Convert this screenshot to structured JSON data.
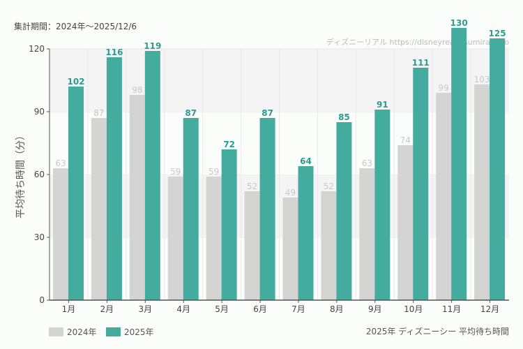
{
  "period_label": "集計期間：2024年～2025/12/6",
  "watermark": "ディズニーリアル https://disneyreal.asumirai.info",
  "subtitle": "2025年 ディズニーシー 平均待ち時間",
  "chart_data": {
    "type": "bar",
    "ylabel": "平均待ち時間（分）",
    "xlabel": "",
    "ylim": [
      0,
      120
    ],
    "yticks": [
      0,
      30,
      60,
      90,
      120
    ],
    "grid": true,
    "legend_position": "bottom-left",
    "categories": [
      "1月",
      "2月",
      "3月",
      "4月",
      "5月",
      "6月",
      "7月",
      "8月",
      "9月",
      "10月",
      "11月",
      "12月"
    ],
    "series": [
      {
        "name": "2024年",
        "color": "#d4d5d3",
        "label_color": "#c8c8c8",
        "values": [
          63,
          87,
          98,
          59,
          59,
          52,
          49,
          52,
          63,
          74,
          99,
          103
        ]
      },
      {
        "name": "2025年",
        "color": "#44ab9f",
        "label_color": "#2a9d8f",
        "values": [
          102,
          116,
          119,
          87,
          72,
          87,
          64,
          85,
          91,
          111,
          130,
          125
        ]
      }
    ]
  }
}
